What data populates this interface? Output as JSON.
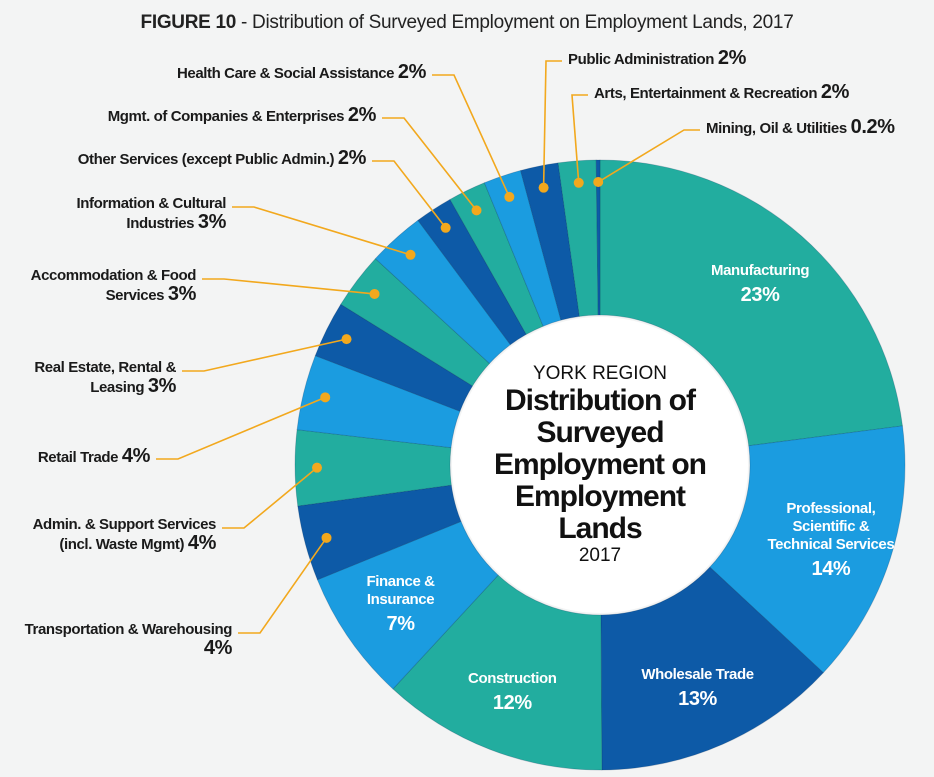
{
  "chart_data": {
    "type": "donut",
    "figure_label": "FIGURE 10",
    "title": "- Distribution of Surveyed Employment on Employment Lands, 2017",
    "center_label": {
      "top": "YORK REGION",
      "main": "Distribution of Surveyed Employment on Employment Lands",
      "bottom": "2017"
    },
    "categories": [
      "Manufacturing",
      "Professional, Scientific & Technical Services",
      "Wholesale Trade",
      "Construction",
      "Finance & Insurance",
      "Transportation & Warehousing",
      "Admin. & Support Services (incl. Waste Mgmt)",
      "Retail Trade",
      "Real Estate, Rental & Leasing",
      "Accommodation & Food Services",
      "Information & Cultural Industries",
      "Other Services (except Public Admin.)",
      "Mgmt. of Companies & Enterprises",
      "Health Care & Social Assistance",
      "Public Administration",
      "Arts, Entertainment & Recreation",
      "Mining, Oil & Utilities"
    ],
    "values": [
      23,
      14,
      13,
      12,
      7,
      4,
      4,
      4,
      3,
      3,
      3,
      2,
      2,
      2,
      2,
      2,
      0.2
    ],
    "value_labels": [
      "23%",
      "14%",
      "13%",
      "12%",
      "7%",
      "4%",
      "4%",
      "4%",
      "3%",
      "3%",
      "3%",
      "2%",
      "2%",
      "2%",
      "2%",
      "2%",
      "0.2%"
    ],
    "colors": [
      "#22ad9f",
      "#1b9ce0",
      "#0d5aa7",
      "#22ad9f",
      "#1b9ce0",
      "#0d5aa7",
      "#22ad9f",
      "#1b9ce0",
      "#0d5aa7",
      "#22ad9f",
      "#1b9ce0",
      "#0d5aa7",
      "#22ad9f",
      "#1b9ce0",
      "#0d5aa7",
      "#22ad9f",
      "#0d5aa7"
    ]
  }
}
